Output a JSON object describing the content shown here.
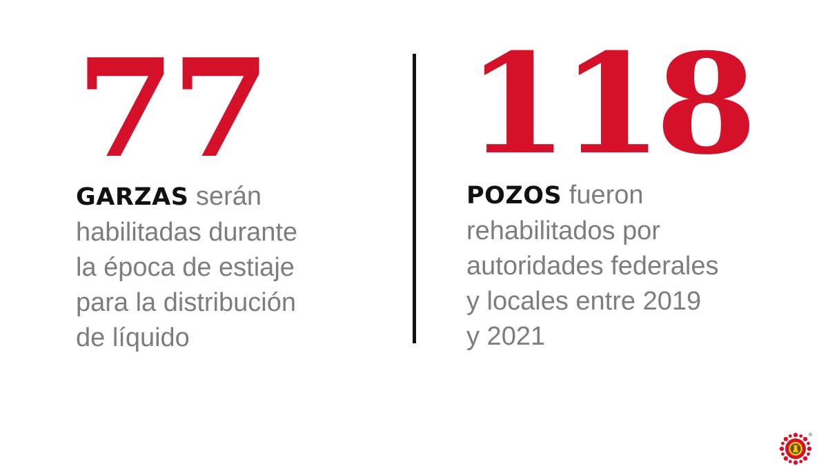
{
  "stats": [
    {
      "number": "77",
      "keyword": "GARZAS",
      "lines": [
        " serán",
        "habilitadas durante",
        "la época de estiaje",
        "para la distribución",
        "de líquido"
      ]
    },
    {
      "number": "118",
      "keyword": "POZOS",
      "lines": [
        " fueron",
        "rehabilitados por",
        "autoridades federales",
        "y locales entre 2019",
        "y 2021"
      ]
    }
  ],
  "colors": {
    "accent": "#d5112a",
    "keyword": "#111111",
    "text": "#7d7d7d",
    "divider": "#111111"
  },
  "logo": {
    "icon": "sun-seal-icon",
    "mark": "®"
  }
}
